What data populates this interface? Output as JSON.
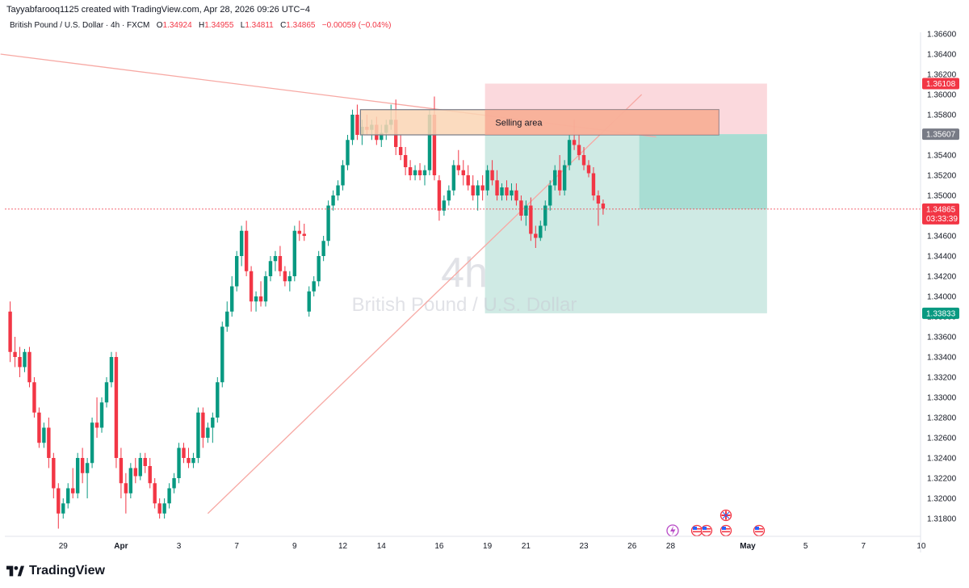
{
  "caption": "Tayyabfarooq1125 created with TradingView.com, Apr 28, 2026 09:26 UTC−4",
  "legend": {
    "symbol": "British Pound / U.S. Dollar · 4h · FXCM",
    "o_label": "O",
    "o": "1.34924",
    "h_label": "H",
    "h": "1.34955",
    "l_label": "L",
    "l": "1.34811",
    "c_label": "C",
    "c": "1.34865",
    "change": "−0.00059 (−0.04%)"
  },
  "watermark": {
    "interval": "4h",
    "name": "British Pound / U.S. Dollar"
  },
  "annotation": {
    "label": "Selling area"
  },
  "price_tags": {
    "stop": "1.36108",
    "entry": "1.35607",
    "current": "1.34865",
    "countdown": "03:33:39",
    "target": "1.33833"
  },
  "footer": {
    "brand": "TradingView"
  },
  "colors": {
    "up": "#089981",
    "down": "#f23645",
    "trend": "#f7a9a4",
    "target_zone": "#cfeae4",
    "stop_zone": "#fbd9dd",
    "selling_box": "#fad5b4"
  },
  "chart_data": {
    "type": "candlestick",
    "symbol": "GBPUSD",
    "timeframe": "4h",
    "yaxis": {
      "min": 1.317,
      "max": 1.3675,
      "ticks": [
        "1.36600",
        "1.36400",
        "1.36200",
        "1.36000",
        "1.35800",
        "1.35600",
        "1.35400",
        "1.35200",
        "1.35000",
        "1.34800",
        "1.34600",
        "1.34400",
        "1.34200",
        "1.34000",
        "1.33800",
        "1.33600",
        "1.33400",
        "1.33200",
        "1.33000",
        "1.32800",
        "1.32600",
        "1.32400",
        "1.32200",
        "1.32000",
        "1.31800"
      ],
      "tick_values": [
        1.366,
        1.364,
        1.362,
        1.36,
        1.358,
        1.356,
        1.354,
        1.352,
        1.35,
        1.348,
        1.346,
        1.344,
        1.342,
        1.34,
        1.338,
        1.336,
        1.334,
        1.332,
        1.33,
        1.328,
        1.326,
        1.324,
        1.322,
        1.32,
        1.318
      ]
    },
    "xaxis": {
      "labels": [
        "29",
        "Apr",
        "3",
        "7",
        "9",
        "12",
        "14",
        "16",
        "19",
        "21",
        "23",
        "26",
        "28",
        "May",
        "5",
        "7",
        "10"
      ],
      "label_bars": [
        8,
        20,
        32,
        44,
        56,
        66,
        74,
        86,
        96,
        104,
        116,
        126,
        134,
        150,
        162,
        174,
        186
      ]
    },
    "candles": [
      [
        1.3385,
        1.3395,
        1.3335,
        1.3345
      ],
      [
        1.3345,
        1.336,
        1.333,
        1.334
      ],
      [
        1.334,
        1.335,
        1.332,
        1.333
      ],
      [
        1.333,
        1.3348,
        1.3325,
        1.3345
      ],
      [
        1.3345,
        1.335,
        1.331,
        1.3315
      ],
      [
        1.3315,
        1.332,
        1.328,
        1.3285
      ],
      [
        1.3285,
        1.329,
        1.325,
        1.3255
      ],
      [
        1.3255,
        1.3275,
        1.325,
        1.327
      ],
      [
        1.327,
        1.328,
        1.323,
        1.324
      ],
      [
        1.324,
        1.3245,
        1.32,
        1.321
      ],
      [
        1.321,
        1.3215,
        1.317,
        1.3185
      ],
      [
        1.3185,
        1.32,
        1.318,
        1.3195
      ],
      [
        1.3195,
        1.3215,
        1.319,
        1.321
      ],
      [
        1.321,
        1.323,
        1.32,
        1.3205
      ],
      [
        1.3205,
        1.3245,
        1.32,
        1.324
      ],
      [
        1.324,
        1.325,
        1.3215,
        1.3225
      ],
      [
        1.3225,
        1.324,
        1.32,
        1.3235
      ],
      [
        1.3235,
        1.328,
        1.323,
        1.3275
      ],
      [
        1.3275,
        1.33,
        1.326,
        1.327
      ],
      [
        1.327,
        1.33,
        1.3265,
        1.3295
      ],
      [
        1.3295,
        1.332,
        1.329,
        1.3315
      ],
      [
        1.3315,
        1.3345,
        1.331,
        1.334
      ],
      [
        1.334,
        1.3345,
        1.323,
        1.324
      ],
      [
        1.324,
        1.325,
        1.32,
        1.3215
      ],
      [
        1.3215,
        1.3225,
        1.3185,
        1.3205
      ],
      [
        1.3205,
        1.3235,
        1.32,
        1.323
      ],
      [
        1.323,
        1.324,
        1.3215,
        1.3222
      ],
      [
        1.3222,
        1.3245,
        1.3218,
        1.324
      ],
      [
        1.324,
        1.3245,
        1.3225,
        1.3232
      ],
      [
        1.3232,
        1.324,
        1.321,
        1.3215
      ],
      [
        1.3215,
        1.322,
        1.319,
        1.3195
      ],
      [
        1.3195,
        1.32,
        1.318,
        1.3185
      ],
      [
        1.3185,
        1.32,
        1.318,
        1.3195
      ],
      [
        1.3195,
        1.3215,
        1.319,
        1.321
      ],
      [
        1.321,
        1.3225,
        1.3205,
        1.322
      ],
      [
        1.322,
        1.3255,
        1.3215,
        1.325
      ],
      [
        1.325,
        1.3255,
        1.3235,
        1.324
      ],
      [
        1.324,
        1.325,
        1.323,
        1.3235
      ],
      [
        1.3235,
        1.3245,
        1.323,
        1.324
      ],
      [
        1.324,
        1.329,
        1.3235,
        1.3285
      ],
      [
        1.3285,
        1.329,
        1.325,
        1.326
      ],
      [
        1.326,
        1.3275,
        1.3255,
        1.327
      ],
      [
        1.327,
        1.3285,
        1.3255,
        1.328
      ],
      [
        1.328,
        1.332,
        1.3275,
        1.3315
      ],
      [
        1.3315,
        1.3375,
        1.331,
        1.337
      ],
      [
        1.337,
        1.3395,
        1.3365,
        1.3385
      ],
      [
        1.3385,
        1.342,
        1.338,
        1.341
      ],
      [
        1.341,
        1.3445,
        1.3405,
        1.344
      ],
      [
        1.344,
        1.347,
        1.343,
        1.3465
      ],
      [
        1.3465,
        1.3475,
        1.342,
        1.3425
      ],
      [
        1.3425,
        1.343,
        1.3385,
        1.3395
      ],
      [
        1.3395,
        1.3405,
        1.3385,
        1.34
      ],
      [
        1.34,
        1.3415,
        1.339,
        1.3395
      ],
      [
        1.3395,
        1.3425,
        1.339,
        1.342
      ],
      [
        1.342,
        1.344,
        1.3415,
        1.3435
      ],
      [
        1.3435,
        1.3445,
        1.3425,
        1.344
      ],
      [
        1.344,
        1.345,
        1.342,
        1.3425
      ],
      [
        1.3425,
        1.343,
        1.341,
        1.3415
      ],
      [
        1.3415,
        1.3425,
        1.3405,
        1.342
      ],
      [
        1.342,
        1.347,
        1.3415,
        1.3465
      ],
      [
        1.3465,
        1.3475,
        1.3455,
        1.3462
      ],
      [
        1.3462,
        1.3472,
        1.3455,
        1.346
      ],
      [
        1.3385,
        1.341,
        1.338,
        1.3405
      ],
      [
        1.3405,
        1.342,
        1.34,
        1.3415
      ],
      [
        1.3415,
        1.3445,
        1.341,
        1.344
      ],
      [
        1.344,
        1.346,
        1.3435,
        1.3455
      ],
      [
        1.3455,
        1.3495,
        1.345,
        1.349
      ],
      [
        1.349,
        1.3505,
        1.3485,
        1.35
      ],
      [
        1.35,
        1.3515,
        1.3495,
        1.351
      ],
      [
        1.351,
        1.3535,
        1.3505,
        1.353
      ],
      [
        1.353,
        1.356,
        1.3525,
        1.3555
      ],
      [
        1.3555,
        1.3585,
        1.355,
        1.358
      ],
      [
        1.358,
        1.359,
        1.3555,
        1.356
      ],
      [
        1.356,
        1.3575,
        1.355,
        1.3568
      ],
      [
        1.3568,
        1.358,
        1.356,
        1.3565
      ],
      [
        1.3565,
        1.3575,
        1.3555,
        1.357
      ],
      [
        1.357,
        1.3578,
        1.355,
        1.3555
      ],
      [
        1.3555,
        1.357,
        1.3548,
        1.3562
      ],
      [
        1.3562,
        1.3575,
        1.3555,
        1.357
      ],
      [
        1.357,
        1.359,
        1.3565,
        1.3575
      ],
      [
        1.3575,
        1.3595,
        1.354,
        1.3548
      ],
      [
        1.3548,
        1.356,
        1.3535,
        1.354
      ],
      [
        1.354,
        1.3548,
        1.352,
        1.3528
      ],
      [
        1.3528,
        1.3535,
        1.3515,
        1.352
      ],
      [
        1.352,
        1.353,
        1.3515,
        1.3525
      ],
      [
        1.3525,
        1.3532,
        1.3515,
        1.352
      ],
      [
        1.352,
        1.353,
        1.351,
        1.3525
      ],
      [
        1.3525,
        1.3585,
        1.352,
        1.358
      ],
      [
        1.358,
        1.3598,
        1.3515,
        1.352
      ],
      [
        1.3515,
        1.352,
        1.3475,
        1.3485
      ],
      [
        1.3485,
        1.35,
        1.348,
        1.3495
      ],
      [
        1.3495,
        1.351,
        1.349,
        1.3505
      ],
      [
        1.3505,
        1.3535,
        1.35,
        1.353
      ],
      [
        1.353,
        1.3545,
        1.352,
        1.3525
      ],
      [
        1.3525,
        1.3535,
        1.351,
        1.352
      ],
      [
        1.352,
        1.353,
        1.3505,
        1.351
      ],
      [
        1.351,
        1.352,
        1.3495,
        1.35
      ],
      [
        1.35,
        1.3515,
        1.3485,
        1.351
      ],
      [
        1.351,
        1.352,
        1.3495,
        1.3505
      ],
      [
        1.3505,
        1.353,
        1.35,
        1.3525
      ],
      [
        1.3525,
        1.3535,
        1.351,
        1.3515
      ],
      [
        1.3515,
        1.3525,
        1.3495,
        1.35
      ],
      [
        1.35,
        1.3512,
        1.3495,
        1.3508
      ],
      [
        1.3508,
        1.3515,
        1.3495,
        1.35
      ],
      [
        1.35,
        1.3512,
        1.3495,
        1.3505
      ],
      [
        1.3505,
        1.3512,
        1.349,
        1.3495
      ],
      [
        1.3495,
        1.35,
        1.3475,
        1.348
      ],
      [
        1.348,
        1.3495,
        1.347,
        1.349
      ],
      [
        1.349,
        1.3498,
        1.3455,
        1.3462
      ],
      [
        1.3462,
        1.347,
        1.3448,
        1.3458
      ],
      [
        1.3458,
        1.3475,
        1.3455,
        1.347
      ],
      [
        1.347,
        1.3495,
        1.3465,
        1.349
      ],
      [
        1.349,
        1.3515,
        1.3485,
        1.351
      ],
      [
        1.351,
        1.353,
        1.3505,
        1.3525
      ],
      [
        1.3525,
        1.354,
        1.35,
        1.3505
      ],
      [
        1.3505,
        1.3535,
        1.35,
        1.353
      ],
      [
        1.353,
        1.356,
        1.3525,
        1.3555
      ],
      [
        1.3555,
        1.3575,
        1.3545,
        1.355
      ],
      [
        1.355,
        1.356,
        1.3535,
        1.354
      ],
      [
        1.354,
        1.3548,
        1.3525,
        1.353
      ],
      [
        1.353,
        1.3535,
        1.3518,
        1.3522
      ],
      [
        1.3522,
        1.3528,
        1.3495,
        1.35
      ],
      [
        1.35,
        1.3505,
        1.347,
        1.3492
      ],
      [
        1.3492,
        1.3496,
        1.3481,
        1.3487
      ]
    ],
    "first_candle_bar": -3,
    "last_close": 1.34865,
    "position": {
      "type": "short",
      "entry": 1.35607,
      "stop": 1.36108,
      "target": 1.33833,
      "start_bar": 96,
      "end_bar": 154
    },
    "selling_area": {
      "top": 1.3585,
      "bottom": 1.356,
      "start_bar": 70,
      "end_bar": 144
    },
    "trendlines": [
      {
        "bar1": -5,
        "p1": 1.364,
        "bar2": 131,
        "p2": 1.3558
      },
      {
        "bar1": 38,
        "p1": 1.3185,
        "bar2": 128,
        "p2": 1.36
      }
    ]
  }
}
